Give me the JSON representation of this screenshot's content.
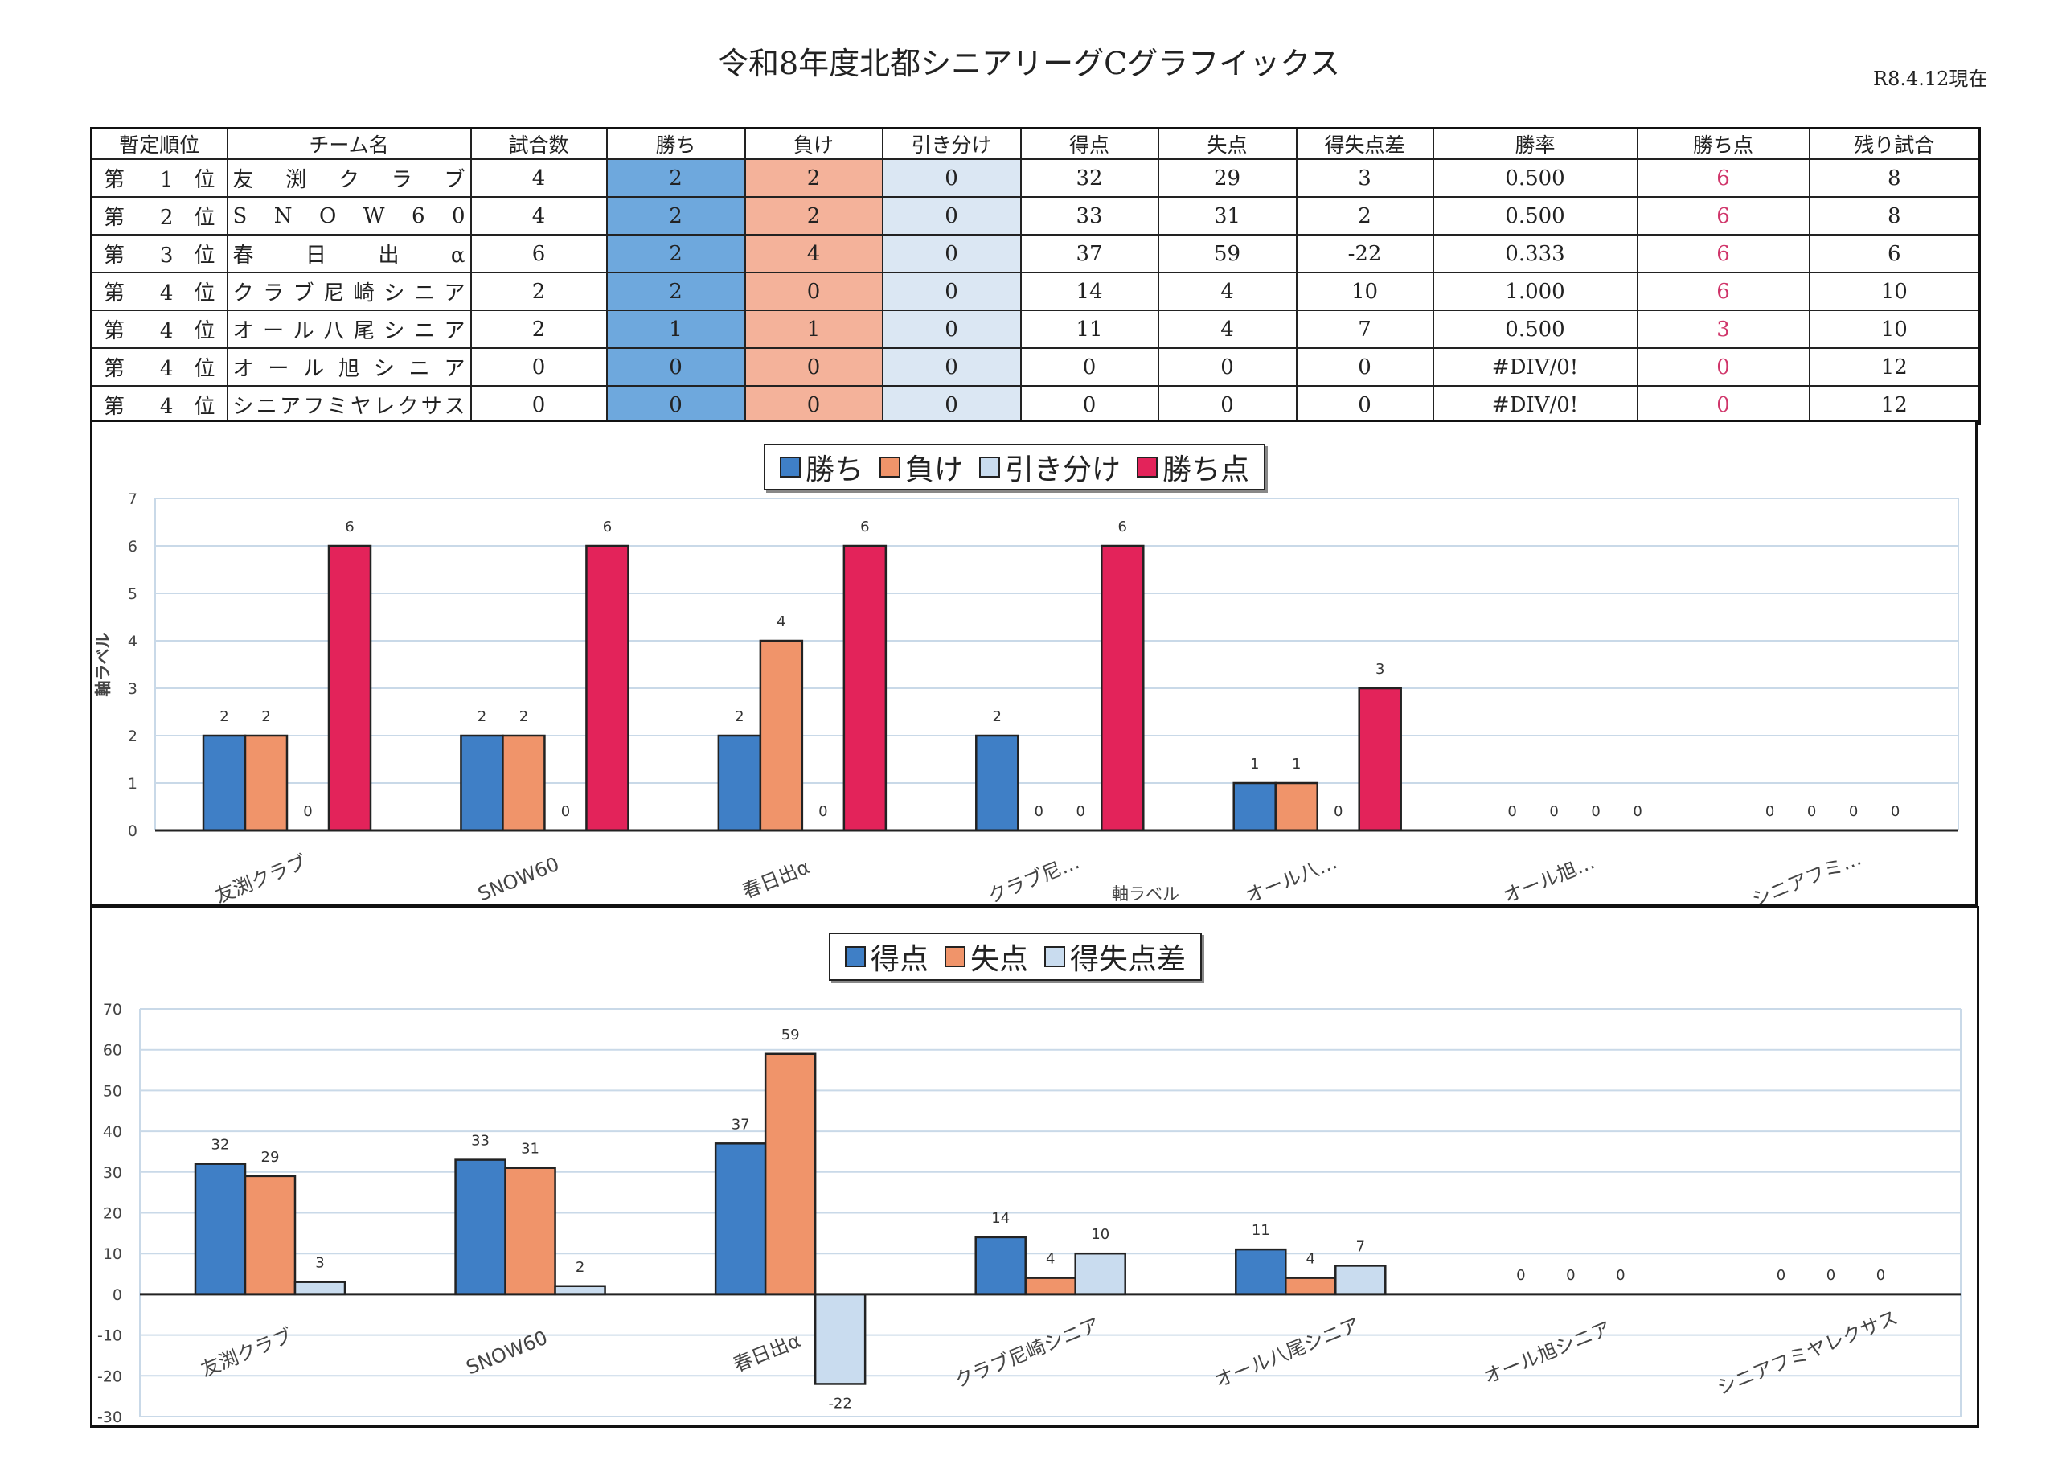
{
  "title": "令和8年度北都シニアリーグCグラフイックス",
  "as_of": "R8.4.12現在",
  "table": {
    "headers": [
      "暫定順位",
      "チーム名",
      "試合数",
      "勝ち",
      "負け",
      "引き分け",
      "得点",
      "失点",
      "得失点差",
      "勝率",
      "勝ち点",
      "残り試合"
    ],
    "rows": [
      [
        "第 1 位",
        "友 渕 ク ラ ブ",
        "4",
        "2",
        "2",
        "0",
        "32",
        "29",
        "3",
        "0.500",
        "6",
        "8"
      ],
      [
        "第 2 位",
        "S N O W 6 0",
        "4",
        "2",
        "2",
        "0",
        "33",
        "31",
        "2",
        "0.500",
        "6",
        "8"
      ],
      [
        "第 3 位",
        "春 日 出 α",
        "6",
        "2",
        "4",
        "0",
        "37",
        "59",
        "-22",
        "0.333",
        "6",
        "6"
      ],
      [
        "第 4 位",
        "クラブ尼崎シニア",
        "2",
        "2",
        "0",
        "0",
        "14",
        "4",
        "10",
        "1.000",
        "6",
        "10"
      ],
      [
        "第 4 位",
        "オール八尾シニア",
        "2",
        "1",
        "1",
        "0",
        "11",
        "4",
        "7",
        "0.500",
        "3",
        "10"
      ],
      [
        "第 4 位",
        "オール旭シニア",
        "0",
        "0",
        "0",
        "0",
        "0",
        "0",
        "0",
        "#DIV/0!",
        "0",
        "12"
      ],
      [
        "第 4 位",
        "シニアフミヤレクサス",
        "0",
        "0",
        "0",
        "0",
        "0",
        "0",
        "0",
        "#DIV/0!",
        "0",
        "12"
      ]
    ]
  },
  "chart_data": [
    {
      "type": "bar",
      "categories": [
        "友渕クラブ",
        "SNOW60",
        "春日出α",
        "クラブ尼…",
        "オール八…",
        "オール旭…",
        "シニアフミ…"
      ],
      "series": [
        {
          "name": "勝ち",
          "color": "#3f7fc6",
          "values": [
            2,
            2,
            2,
            2,
            1,
            0,
            0
          ]
        },
        {
          "name": "負け",
          "color": "#f0946a",
          "values": [
            2,
            2,
            4,
            0,
            1,
            0,
            0
          ]
        },
        {
          "name": "引き分け",
          "color": "#c9dcef",
          "values": [
            0,
            0,
            0,
            0,
            0,
            0,
            0
          ]
        },
        {
          "name": "勝ち点",
          "color": "#e3235a",
          "values": [
            6,
            6,
            6,
            6,
            3,
            0,
            0
          ]
        }
      ],
      "ylim": [
        0,
        7
      ],
      "yticks": [
        "0",
        "1",
        "2",
        "3",
        "4",
        "5",
        "6",
        "7"
      ],
      "ylabel": "軸ラベル",
      "xlabel": "軸ラベル",
      "legend": "top"
    },
    {
      "type": "bar",
      "categories": [
        "友渕クラブ",
        "SNOW60",
        "春日出α",
        "クラブ尼崎シニア",
        "オール八尾シニア",
        "オール旭シニア",
        "シニアフミヤレクサス"
      ],
      "series": [
        {
          "name": "得点",
          "color": "#3f7fc6",
          "values": [
            32,
            33,
            37,
            14,
            11,
            0,
            0
          ]
        },
        {
          "name": "失点",
          "color": "#f0946a",
          "values": [
            29,
            31,
            59,
            4,
            4,
            0,
            0
          ]
        },
        {
          "name": "得失点差",
          "color": "#c9dcef",
          "values": [
            3,
            2,
            -22,
            10,
            7,
            0,
            0
          ]
        }
      ],
      "ylim": [
        -30,
        70
      ],
      "yticks": [
        "-30",
        "-20",
        "-10",
        "0",
        "10",
        "20",
        "30",
        "40",
        "50",
        "60",
        "70"
      ],
      "legend": "top"
    }
  ]
}
